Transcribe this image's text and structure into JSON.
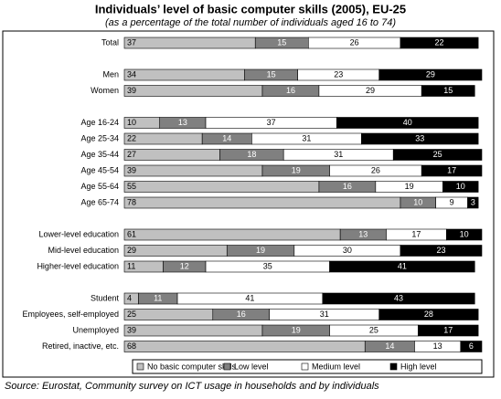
{
  "chart_data": {
    "type": "stacked-bar-horizontal",
    "title": "Individuals’ level of basic computer skills (2005), EU-25",
    "subtitle": "(as a percentage of the total number of individuals aged 16 to 74)",
    "source": "Source: Eurostat, Community survey on ICT usage in households and by individuals",
    "categories": [
      "Total",
      null,
      "Men",
      "Women",
      null,
      "Age 16-24",
      "Age 25-34",
      "Age 35-44",
      "Age 45-54",
      "Age 55-64",
      "Age 65-74",
      null,
      "Lower-level education",
      "Mid-level education",
      "Higher-level education",
      null,
      "Student",
      "Employees, self-employed",
      "Unemployed",
      "Retired, inactive, etc."
    ],
    "series": [
      {
        "name": "No basic computer skills",
        "color": "#c0c0c0",
        "values": [
          37,
          null,
          34,
          39,
          null,
          10,
          22,
          27,
          39,
          55,
          78,
          null,
          61,
          29,
          11,
          null,
          4,
          25,
          39,
          68
        ]
      },
      {
        "name": "Low level",
        "color": "#808080",
        "values": [
          15,
          null,
          15,
          16,
          null,
          13,
          14,
          18,
          19,
          16,
          10,
          null,
          13,
          19,
          12,
          null,
          11,
          16,
          19,
          14
        ]
      },
      {
        "name": "Medium level",
        "color": "#ffffff",
        "values": [
          26,
          null,
          23,
          29,
          null,
          37,
          31,
          31,
          26,
          19,
          9,
          null,
          17,
          30,
          35,
          null,
          41,
          31,
          25,
          13
        ]
      },
      {
        "name": "High level",
        "color": "#000000",
        "values": [
          22,
          null,
          29,
          15,
          null,
          40,
          33,
          25,
          17,
          10,
          3,
          null,
          10,
          23,
          41,
          null,
          43,
          28,
          17,
          6
        ]
      }
    ]
  }
}
